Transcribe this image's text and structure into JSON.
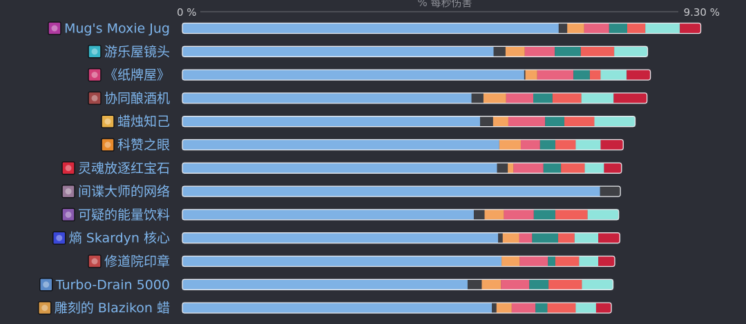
{
  "chart_data": {
    "type": "bar",
    "stacked": true,
    "orientation": "horizontal",
    "xlabel": "% 每秒伤害",
    "axis": {
      "min": 0,
      "max": 9.3,
      "tick_labels": [
        "0 %",
        "9.30 %"
      ]
    },
    "series_colors": [
      "#7fb2e5",
      "#3f4045",
      "#f4a460",
      "#e8637f",
      "#2c8c87",
      "#f0605a",
      "#90e4dc",
      "#c8223d"
    ],
    "categories": [
      {
        "label": "Mug's Moxie Jug",
        "icon": "purple-pig-mug-icon",
        "icon_color": "#b03aa0"
      },
      {
        "label": "游乐屋镜头",
        "icon": "cyan-lens-icon",
        "icon_color": "#38b6c8"
      },
      {
        "label": "《纸牌屋》",
        "icon": "pink-card-swirl-icon",
        "icon_color": "#d23f78"
      },
      {
        "label": "协同酿酒机",
        "icon": "brew-machine-icon",
        "icon_color": "#a04848"
      },
      {
        "label": "蜡烛知己",
        "icon": "candle-icon",
        "icon_color": "#e6b04a"
      },
      {
        "label": "科赞之眼",
        "icon": "orange-eye-icon",
        "icon_color": "#e88a2c"
      },
      {
        "label": "灵魂放逐红宝石",
        "icon": "red-ruby-icon",
        "icon_color": "#d8283c"
      },
      {
        "label": "间谍大师的网络",
        "icon": "spymaster-web-icon",
        "icon_color": "#9a7a9a"
      },
      {
        "label": "可疑的能量饮料",
        "icon": "energy-drink-icon",
        "icon_color": "#8a5ab0"
      },
      {
        "label": "熵 Skardyn 核心",
        "icon": "blue-orb-icon",
        "icon_color": "#3a48d8"
      },
      {
        "label": "修道院印章",
        "icon": "seal-icon",
        "icon_color": "#c04848"
      },
      {
        "label": "Turbo-Drain 5000",
        "icon": "turbo-drain-icon",
        "icon_color": "#5a8ac8"
      },
      {
        "label": "雕刻的 Blazikon 蜡",
        "icon": "wax-candle-icon",
        "icon_color": "#d89a48"
      }
    ],
    "rows": [
      [
        6.65,
        0.15,
        0.3,
        0.44,
        0.32,
        0.32,
        0.61,
        0.37
      ],
      [
        5.5,
        0.21,
        0.34,
        0.53,
        0.46,
        0.59,
        0.59,
        0.0
      ],
      [
        6.04,
        0.02,
        0.21,
        0.64,
        0.29,
        0.19,
        0.46,
        0.42
      ],
      [
        5.11,
        0.21,
        0.4,
        0.48,
        0.34,
        0.51,
        0.57,
        0.59
      ],
      [
        5.26,
        0.23,
        0.27,
        0.65,
        0.34,
        0.53,
        0.72,
        0.0
      ],
      [
        5.6,
        0.0,
        0.38,
        0.34,
        0.27,
        0.36,
        0.44,
        0.4
      ],
      [
        5.56,
        0.19,
        0.1,
        0.53,
        0.31,
        0.42,
        0.34,
        0.31
      ],
      [
        7.38,
        0.36,
        0.0,
        0.0,
        0.0,
        0.0,
        0.0,
        0.0
      ],
      [
        5.15,
        0.19,
        0.34,
        0.53,
        0.38,
        0.57,
        0.55,
        0.0
      ],
      [
        5.58,
        0.08,
        0.29,
        0.23,
        0.46,
        0.29,
        0.42,
        0.38
      ],
      [
        5.64,
        0.0,
        0.32,
        0.5,
        0.13,
        0.42,
        0.34,
        0.29
      ],
      [
        5.04,
        0.25,
        0.34,
        0.5,
        0.34,
        0.59,
        0.55,
        0.0
      ],
      [
        5.47,
        0.08,
        0.27,
        0.42,
        0.21,
        0.5,
        0.36,
        0.27
      ]
    ]
  }
}
